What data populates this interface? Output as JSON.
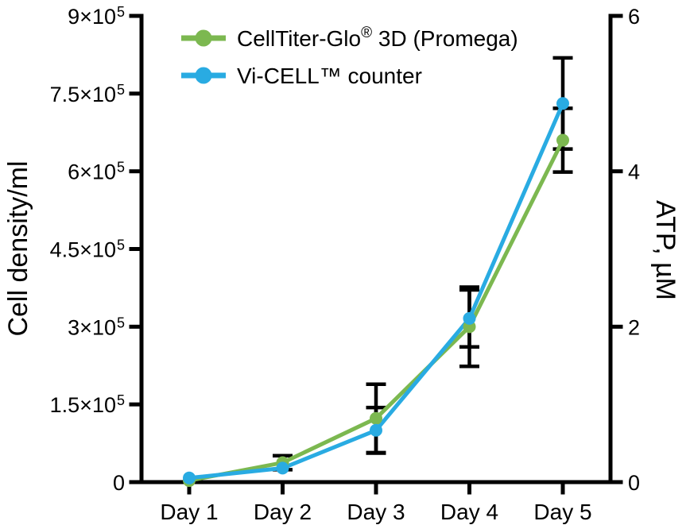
{
  "figure": {
    "background": "#FFFFFF",
    "axis_color": "#000000"
  },
  "chart_data": {
    "type": "line",
    "title": "",
    "grid": false,
    "legend_position": "top-center-inside",
    "categories": [
      "Day 1",
      "Day 2",
      "Day 3",
      "Day 4",
      "Day 5"
    ],
    "x_axis": {
      "labels": [
        "Day 1",
        "Day 2",
        "Day 3",
        "Day 4",
        "Day 5"
      ]
    },
    "left_axis": {
      "label": "Cell density/ml",
      "range": [
        0,
        900000
      ],
      "ticks": [
        {
          "value": 0,
          "base": "0",
          "sup": ""
        },
        {
          "value": 150000,
          "base": "1.5×10",
          "sup": "5"
        },
        {
          "value": 300000,
          "base": "3×10",
          "sup": "5"
        },
        {
          "value": 450000,
          "base": "4.5×10",
          "sup": "5"
        },
        {
          "value": 600000,
          "base": "6×10",
          "sup": "5"
        },
        {
          "value": 750000,
          "base": "7.5×10",
          "sup": "5"
        },
        {
          "value": 900000,
          "base": "9×10",
          "sup": "5"
        }
      ]
    },
    "right_axis": {
      "label": "ATP, µM",
      "range": [
        0,
        6
      ],
      "ticks": [
        {
          "value": 0,
          "base": "0",
          "sup": ""
        },
        {
          "value": 2,
          "base": "2",
          "sup": ""
        },
        {
          "value": 4,
          "base": "4",
          "sup": ""
        },
        {
          "value": 6,
          "base": "6",
          "sup": ""
        }
      ]
    },
    "series": [
      {
        "name": "CellTiter-Glo® 3D (Promega)",
        "name_parts": [
          {
            "t": "CellTiter-Glo"
          },
          {
            "t": "®",
            "sup": true
          },
          {
            "t": " 3D (Promega)"
          }
        ],
        "color": "#7CB850",
        "axis": "right",
        "unit": "µM ATP",
        "values": [
          0.02,
          0.25,
          0.82,
          2.0,
          4.4
        ],
        "errors": [
          0,
          0.09,
          0.44,
          0.51,
          0.41
        ]
      },
      {
        "name": "Vi-CELL™ counter",
        "name_parts": [
          {
            "t": "Vi-CELL™ counter"
          }
        ],
        "color": "#29ABE2",
        "axis": "left",
        "unit": "cells/ml",
        "values": [
          8000,
          27000,
          100000,
          316000,
          731000
        ],
        "errors": [
          0,
          0,
          44000,
          55000,
          88000
        ]
      }
    ]
  }
}
